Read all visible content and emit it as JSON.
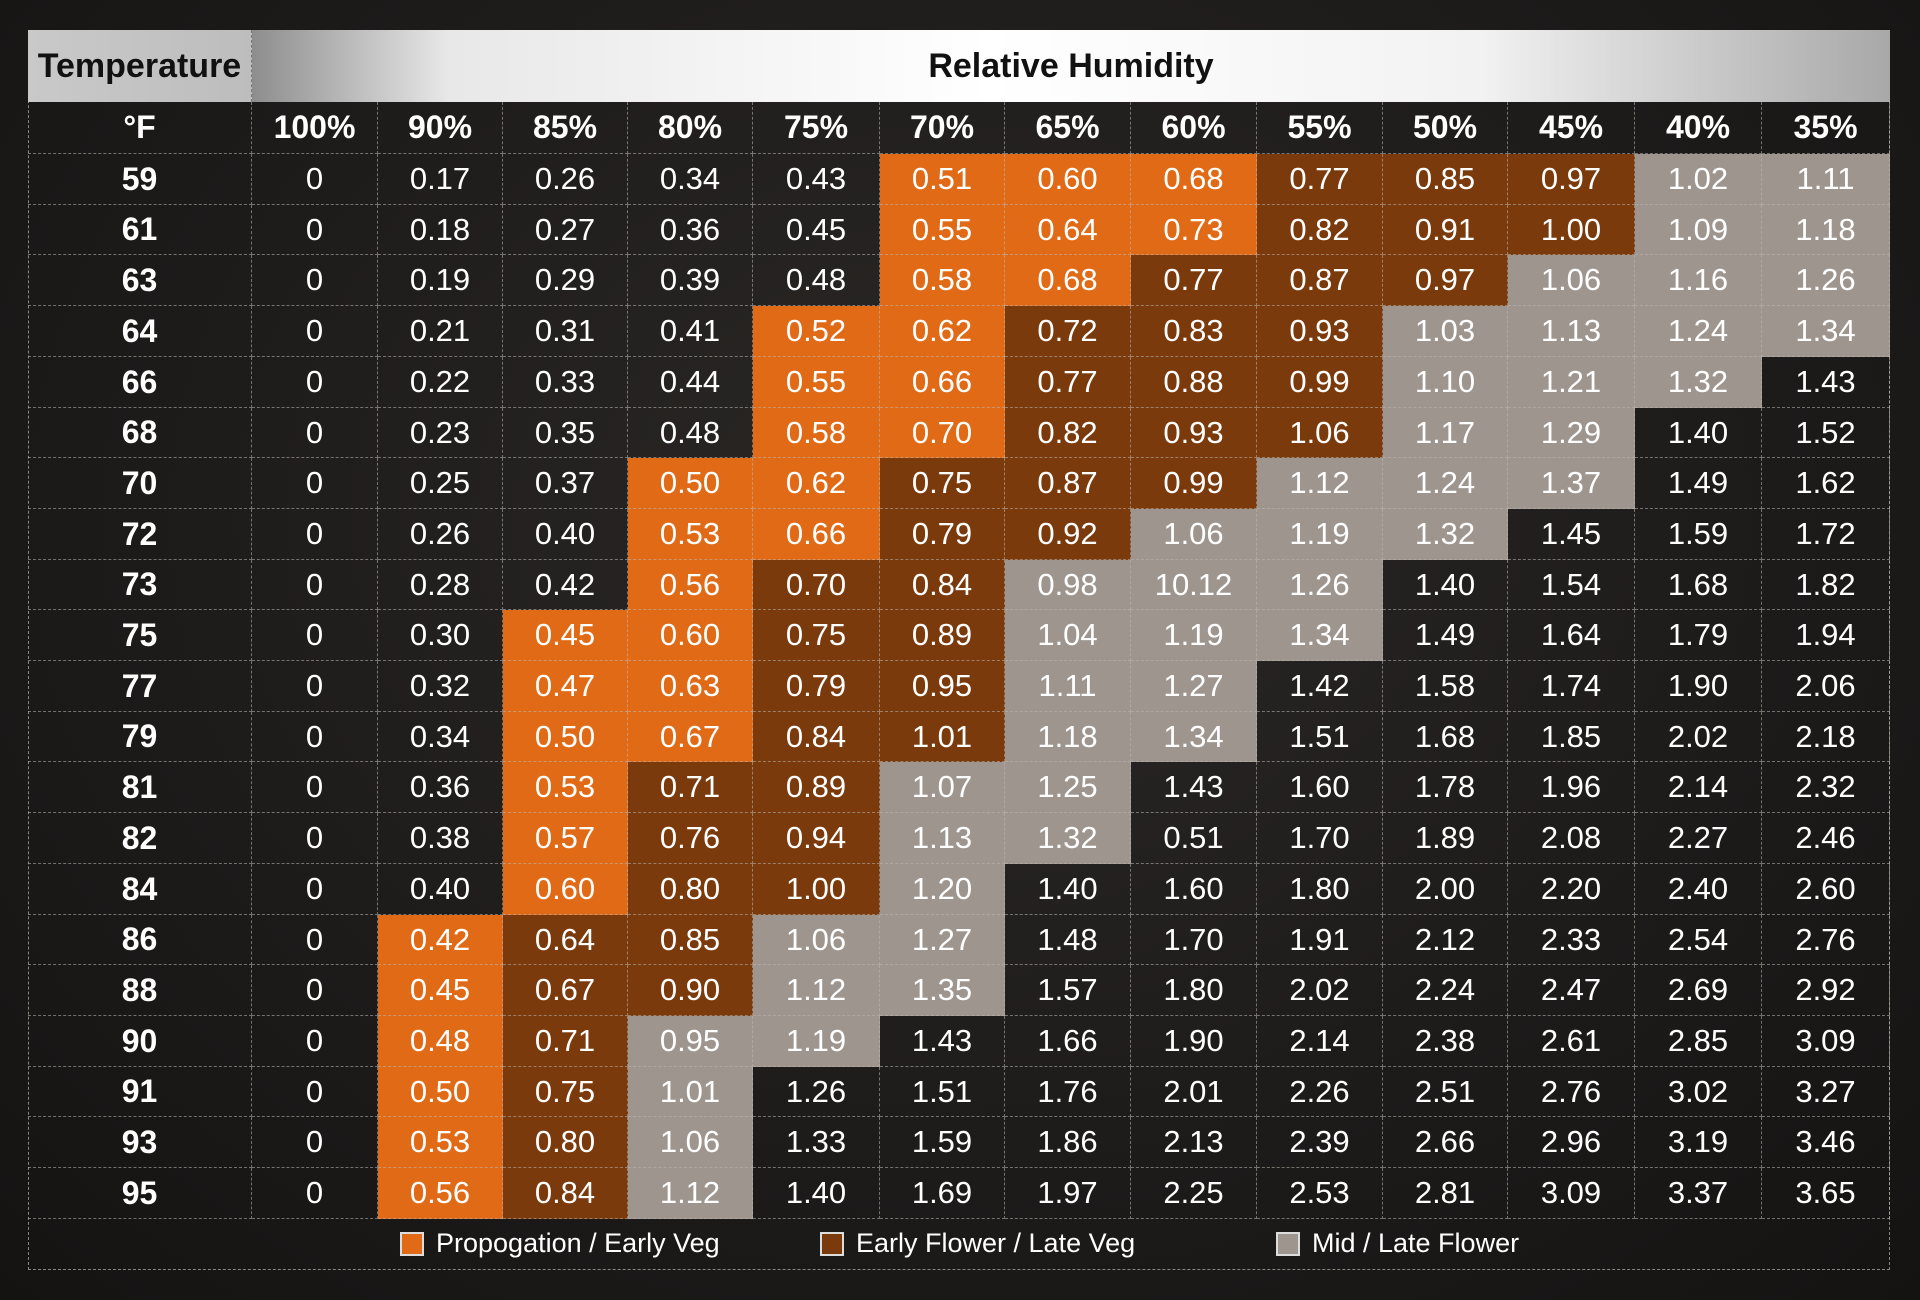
{
  "header": {
    "temperature_label": "Temperature",
    "humidity_label": "Relative Humidity",
    "unit_label": "°F"
  },
  "colors": {
    "propagation": "#e06a16",
    "early_flower": "#7a3a0c",
    "mid_late_flower": "#9d958e",
    "background": "#1d1b1a"
  },
  "legend": [
    {
      "label": "Propogation / Early Veg",
      "zone": 1
    },
    {
      "label": "Early Flower / Late Veg",
      "zone": 2
    },
    {
      "label": "Mid / Late Flower",
      "zone": 3
    }
  ],
  "chart_data": {
    "type": "table",
    "title": "",
    "columns": [
      "100%",
      "90%",
      "85%",
      "80%",
      "75%",
      "70%",
      "65%",
      "60%",
      "55%",
      "50%",
      "45%",
      "40%",
      "35%"
    ],
    "rows": [
      "59",
      "61",
      "63",
      "64",
      "66",
      "68",
      "70",
      "72",
      "73",
      "75",
      "77",
      "79",
      "81",
      "82",
      "84",
      "86",
      "88",
      "90",
      "91",
      "93",
      "95"
    ],
    "values": [
      [
        "0",
        "0.17",
        "0.26",
        "0.34",
        "0.43",
        "0.51",
        "0.60",
        "0.68",
        "0.77",
        "0.85",
        "0.97",
        "1.02",
        "1.11"
      ],
      [
        "0",
        "0.18",
        "0.27",
        "0.36",
        "0.45",
        "0.55",
        "0.64",
        "0.73",
        "0.82",
        "0.91",
        "1.00",
        "1.09",
        "1.18"
      ],
      [
        "0",
        "0.19",
        "0.29",
        "0.39",
        "0.48",
        "0.58",
        "0.68",
        "0.77",
        "0.87",
        "0.97",
        "1.06",
        "1.16",
        "1.26"
      ],
      [
        "0",
        "0.21",
        "0.31",
        "0.41",
        "0.52",
        "0.62",
        "0.72",
        "0.83",
        "0.93",
        "1.03",
        "1.13",
        "1.24",
        "1.34"
      ],
      [
        "0",
        "0.22",
        "0.33",
        "0.44",
        "0.55",
        "0.66",
        "0.77",
        "0.88",
        "0.99",
        "1.10",
        "1.21",
        "1.32",
        "1.43"
      ],
      [
        "0",
        "0.23",
        "0.35",
        "0.48",
        "0.58",
        "0.70",
        "0.82",
        "0.93",
        "1.06",
        "1.17",
        "1.29",
        "1.40",
        "1.52"
      ],
      [
        "0",
        "0.25",
        "0.37",
        "0.50",
        "0.62",
        "0.75",
        "0.87",
        "0.99",
        "1.12",
        "1.24",
        "1.37",
        "1.49",
        "1.62"
      ],
      [
        "0",
        "0.26",
        "0.40",
        "0.53",
        "0.66",
        "0.79",
        "0.92",
        "1.06",
        "1.19",
        "1.32",
        "1.45",
        "1.59",
        "1.72"
      ],
      [
        "0",
        "0.28",
        "0.42",
        "0.56",
        "0.70",
        "0.84",
        "0.98",
        "10.12",
        "1.26",
        "1.40",
        "1.54",
        "1.68",
        "1.82"
      ],
      [
        "0",
        "0.30",
        "0.45",
        "0.60",
        "0.75",
        "0.89",
        "1.04",
        "1.19",
        "1.34",
        "1.49",
        "1.64",
        "1.79",
        "1.94"
      ],
      [
        "0",
        "0.32",
        "0.47",
        "0.63",
        "0.79",
        "0.95",
        "1.11",
        "1.27",
        "1.42",
        "1.58",
        "1.74",
        "1.90",
        "2.06"
      ],
      [
        "0",
        "0.34",
        "0.50",
        "0.67",
        "0.84",
        "1.01",
        "1.18",
        "1.34",
        "1.51",
        "1.68",
        "1.85",
        "2.02",
        "2.18"
      ],
      [
        "0",
        "0.36",
        "0.53",
        "0.71",
        "0.89",
        "1.07",
        "1.25",
        "1.43",
        "1.60",
        "1.78",
        "1.96",
        "2.14",
        "2.32"
      ],
      [
        "0",
        "0.38",
        "0.57",
        "0.76",
        "0.94",
        "1.13",
        "1.32",
        "0.51",
        "1.70",
        "1.89",
        "2.08",
        "2.27",
        "2.46"
      ],
      [
        "0",
        "0.40",
        "0.60",
        "0.80",
        "1.00",
        "1.20",
        "1.40",
        "1.60",
        "1.80",
        "2.00",
        "2.20",
        "2.40",
        "2.60"
      ],
      [
        "0",
        "0.42",
        "0.64",
        "0.85",
        "1.06",
        "1.27",
        "1.48",
        "1.70",
        "1.91",
        "2.12",
        "2.33",
        "2.54",
        "2.76"
      ],
      [
        "0",
        "0.45",
        "0.67",
        "0.90",
        "1.12",
        "1.35",
        "1.57",
        "1.80",
        "2.02",
        "2.24",
        "2.47",
        "2.69",
        "2.92"
      ],
      [
        "0",
        "0.48",
        "0.71",
        "0.95",
        "1.19",
        "1.43",
        "1.66",
        "1.90",
        "2.14",
        "2.38",
        "2.61",
        "2.85",
        "3.09"
      ],
      [
        "0",
        "0.50",
        "0.75",
        "1.01",
        "1.26",
        "1.51",
        "1.76",
        "2.01",
        "2.26",
        "2.51",
        "2.76",
        "3.02",
        "3.27"
      ],
      [
        "0",
        "0.53",
        "0.80",
        "1.06",
        "1.33",
        "1.59",
        "1.86",
        "2.13",
        "2.39",
        "2.66",
        "2.96",
        "3.19",
        "3.46"
      ],
      [
        "0",
        "0.56",
        "0.84",
        "1.12",
        "1.40",
        "1.69",
        "1.97",
        "2.25",
        "2.53",
        "2.81",
        "3.09",
        "3.37",
        "3.65"
      ]
    ],
    "zones": [
      [
        0,
        0,
        0,
        0,
        0,
        1,
        1,
        1,
        2,
        2,
        2,
        3,
        3
      ],
      [
        0,
        0,
        0,
        0,
        0,
        1,
        1,
        1,
        2,
        2,
        2,
        3,
        3
      ],
      [
        0,
        0,
        0,
        0,
        0,
        1,
        1,
        2,
        2,
        2,
        3,
        3,
        3
      ],
      [
        0,
        0,
        0,
        0,
        1,
        1,
        2,
        2,
        2,
        3,
        3,
        3,
        3
      ],
      [
        0,
        0,
        0,
        0,
        1,
        1,
        2,
        2,
        2,
        3,
        3,
        3,
        0
      ],
      [
        0,
        0,
        0,
        0,
        1,
        1,
        2,
        2,
        2,
        3,
        3,
        0,
        0
      ],
      [
        0,
        0,
        0,
        1,
        1,
        2,
        2,
        2,
        3,
        3,
        3,
        0,
        0
      ],
      [
        0,
        0,
        0,
        1,
        1,
        2,
        2,
        3,
        3,
        3,
        0,
        0,
        0
      ],
      [
        0,
        0,
        0,
        1,
        2,
        2,
        3,
        3,
        3,
        0,
        0,
        0,
        0
      ],
      [
        0,
        0,
        1,
        1,
        2,
        2,
        3,
        3,
        3,
        0,
        0,
        0,
        0
      ],
      [
        0,
        0,
        1,
        1,
        2,
        2,
        3,
        3,
        0,
        0,
        0,
        0,
        0
      ],
      [
        0,
        0,
        1,
        1,
        2,
        2,
        3,
        3,
        0,
        0,
        0,
        0,
        0
      ],
      [
        0,
        0,
        1,
        2,
        2,
        3,
        3,
        0,
        0,
        0,
        0,
        0,
        0
      ],
      [
        0,
        0,
        1,
        2,
        2,
        3,
        3,
        0,
        0,
        0,
        0,
        0,
        0
      ],
      [
        0,
        0,
        1,
        2,
        2,
        3,
        0,
        0,
        0,
        0,
        0,
        0,
        0
      ],
      [
        0,
        1,
        2,
        2,
        3,
        3,
        0,
        0,
        0,
        0,
        0,
        0,
        0
      ],
      [
        0,
        1,
        2,
        2,
        3,
        3,
        0,
        0,
        0,
        0,
        0,
        0,
        0
      ],
      [
        0,
        1,
        2,
        3,
        3,
        0,
        0,
        0,
        0,
        0,
        0,
        0,
        0
      ],
      [
        0,
        1,
        2,
        3,
        0,
        0,
        0,
        0,
        0,
        0,
        0,
        0,
        0
      ],
      [
        0,
        1,
        2,
        3,
        0,
        0,
        0,
        0,
        0,
        0,
        0,
        0,
        0
      ],
      [
        0,
        1,
        2,
        3,
        0,
        0,
        0,
        0,
        0,
        0,
        0,
        0,
        0
      ]
    ]
  }
}
